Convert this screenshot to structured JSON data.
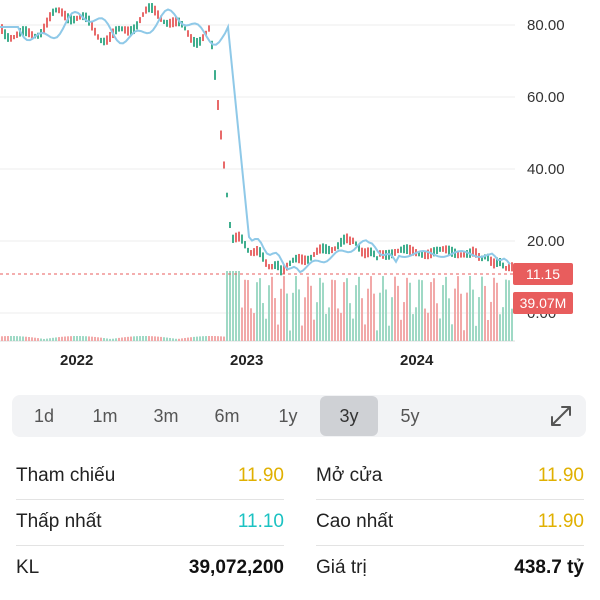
{
  "chart": {
    "y_ticks": [
      "80.00",
      "60.00",
      "40.00",
      "20.00",
      "0.00"
    ],
    "x_ticks": [
      "2022",
      "2023",
      "2024"
    ],
    "current_price": "11.15",
    "current_volume": "39.07M",
    "colors": {
      "up": "#3fae8e",
      "down": "#e86a6a",
      "ma": "#8fc9e8",
      "price_line": "#e85d5d"
    }
  },
  "range_tabs": {
    "items": [
      "1d",
      "1m",
      "3m",
      "6m",
      "1y",
      "3y",
      "5y"
    ],
    "active": "3y"
  },
  "stats": {
    "reference": {
      "label": "Tham chiếu",
      "value": "11.90"
    },
    "open": {
      "label": "Mở cửa",
      "value": "11.90"
    },
    "low": {
      "label": "Thấp nhất",
      "value": "11.10"
    },
    "high": {
      "label": "Cao nhất",
      "value": "11.90"
    },
    "volume": {
      "label": "KL",
      "value": "39,072,200"
    },
    "turnover": {
      "label": "Giá trị",
      "value": "438.7 tỷ"
    },
    "colors": {
      "reference": "#e0b000",
      "low": "#1bc2c2",
      "default": "#111111"
    }
  }
}
